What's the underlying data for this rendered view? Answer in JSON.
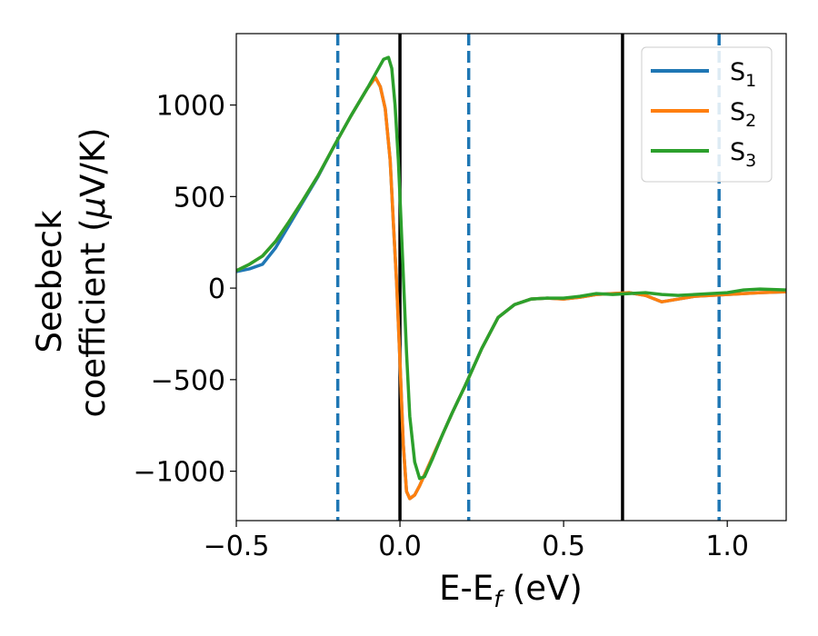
{
  "chart_data": {
    "type": "line",
    "xlabel_main": "E-E",
    "xlabel_sub": "f",
    "xlabel_tail": " (eV)",
    "ylabel_line1": "Seebeck",
    "ylabel_line2_a": "coefficient  (",
    "ylabel_line2_mu": "μ",
    "ylabel_line2_b": "V/K)",
    "xlim": [
      -0.5,
      1.18
    ],
    "ylim": [
      -1270,
      1390
    ],
    "xticks": [
      -0.5,
      0.0,
      0.5,
      1.0
    ],
    "xtick_labels": [
      "−0.5",
      "0.0",
      "0.5",
      "1.0"
    ],
    "yticks": [
      -1000,
      -500,
      0,
      500,
      1000
    ],
    "ytick_labels": [
      "−1000",
      "−500",
      "0",
      "500",
      "1000"
    ],
    "grid": false,
    "legend_position": "upper right",
    "vertical_lines": [
      {
        "x": -0.19,
        "style": "dashed",
        "color": "#1f77b4"
      },
      {
        "x": 0.0,
        "style": "solid",
        "color": "#000000"
      },
      {
        "x": 0.21,
        "style": "dashed",
        "color": "#1f77b4"
      },
      {
        "x": 0.68,
        "style": "solid",
        "color": "#000000"
      },
      {
        "x": 0.975,
        "style": "dashed",
        "color": "#1f77b4"
      }
    ],
    "series": [
      {
        "name": "S",
        "sub": "1",
        "color": "#1f77b4",
        "x": [
          -0.5,
          -0.46,
          -0.42,
          -0.38,
          -0.34,
          -0.3,
          -0.25,
          -0.2,
          -0.15,
          -0.1,
          -0.075,
          -0.06,
          -0.045,
          -0.03,
          -0.02,
          -0.01,
          0.0,
          0.01,
          0.02,
          0.03,
          0.045,
          0.06,
          0.08,
          0.1,
          0.13,
          0.16,
          0.2,
          0.25,
          0.3,
          0.35,
          0.4,
          0.45,
          0.5,
          0.55,
          0.6,
          0.65,
          0.7,
          0.75,
          0.8,
          0.85,
          0.9,
          0.95,
          1.0,
          1.05,
          1.1,
          1.18
        ],
        "y": [
          90,
          105,
          130,
          220,
          340,
          460,
          610,
          780,
          940,
          1090,
          1150,
          1100,
          980,
          700,
          350,
          20,
          -400,
          -850,
          -1110,
          -1150,
          -1130,
          -1080,
          -1000,
          -920,
          -800,
          -680,
          -530,
          -330,
          -160,
          -90,
          -60,
          -55,
          -60,
          -50,
          -35,
          -30,
          -25,
          -40,
          -75,
          -60,
          -45,
          -40,
          -35,
          -30,
          -25,
          -20
        ]
      },
      {
        "name": "S",
        "sub": "2",
        "color": "#ff7f0e",
        "x": [
          -0.5,
          -0.46,
          -0.42,
          -0.38,
          -0.34,
          -0.3,
          -0.25,
          -0.2,
          -0.15,
          -0.1,
          -0.075,
          -0.06,
          -0.045,
          -0.03,
          -0.02,
          -0.01,
          0.0,
          0.01,
          0.02,
          0.03,
          0.045,
          0.06,
          0.08,
          0.1,
          0.13,
          0.16,
          0.2,
          0.25,
          0.3,
          0.35,
          0.4,
          0.45,
          0.5,
          0.55,
          0.6,
          0.65,
          0.7,
          0.75,
          0.8,
          0.85,
          0.9,
          0.95,
          1.0,
          1.05,
          1.1,
          1.18
        ],
        "y": [
          95,
          130,
          175,
          255,
          360,
          470,
          615,
          780,
          940,
          1090,
          1150,
          1100,
          980,
          700,
          350,
          20,
          -400,
          -850,
          -1110,
          -1150,
          -1130,
          -1080,
          -1000,
          -920,
          -800,
          -680,
          -530,
          -330,
          -160,
          -90,
          -60,
          -55,
          -60,
          -50,
          -35,
          -30,
          -25,
          -40,
          -75,
          -60,
          -45,
          -40,
          -35,
          -30,
          -25,
          -20
        ]
      },
      {
        "name": "S",
        "sub": "3",
        "color": "#2ca02c",
        "x": [
          -0.5,
          -0.46,
          -0.42,
          -0.38,
          -0.34,
          -0.3,
          -0.25,
          -0.2,
          -0.15,
          -0.1,
          -0.075,
          -0.05,
          -0.035,
          -0.025,
          -0.015,
          -0.005,
          0.0,
          0.01,
          0.02,
          0.03,
          0.045,
          0.06,
          0.075,
          0.1,
          0.13,
          0.16,
          0.2,
          0.25,
          0.3,
          0.35,
          0.4,
          0.45,
          0.5,
          0.55,
          0.6,
          0.65,
          0.7,
          0.75,
          0.8,
          0.85,
          0.9,
          0.95,
          1.0,
          1.05,
          1.1,
          1.18
        ],
        "y": [
          95,
          130,
          175,
          255,
          360,
          470,
          615,
          780,
          940,
          1090,
          1170,
          1250,
          1260,
          1200,
          1000,
          700,
          500,
          80,
          -350,
          -700,
          -950,
          -1040,
          -1030,
          -930,
          -800,
          -680,
          -530,
          -330,
          -160,
          -90,
          -60,
          -55,
          -55,
          -45,
          -30,
          -35,
          -30,
          -25,
          -35,
          -40,
          -35,
          -30,
          -25,
          -10,
          -5,
          -10
        ]
      }
    ]
  }
}
